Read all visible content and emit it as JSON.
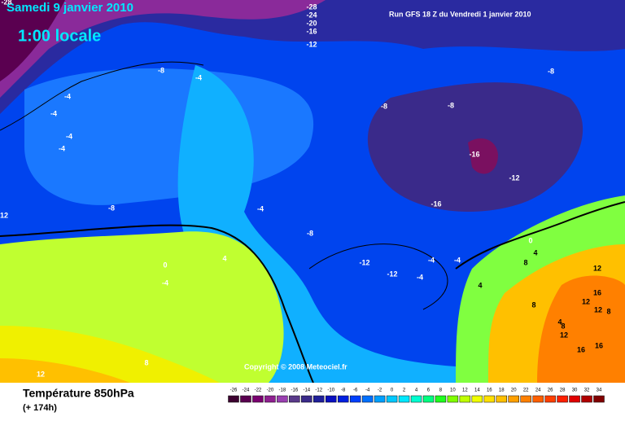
{
  "header": {
    "date": "Samedi 9 janvier 2010",
    "time": "1:00 locale",
    "run": "Run GFS 18 Z du Vendredi 1 janvier 2010"
  },
  "copyright": "Copyright © 2008 Meteociel.fr",
  "footer": {
    "title": "Température 850hPa",
    "subtitle": "(+ 174h)"
  },
  "scale": {
    "labels": [
      -26,
      -24,
      -22,
      -20,
      -18,
      -16,
      -14,
      -12,
      -10,
      -8,
      -6,
      -4,
      -2,
      0,
      2,
      4,
      6,
      8,
      10,
      12,
      14,
      16,
      18,
      20,
      22,
      24,
      26,
      28,
      30,
      32,
      34
    ],
    "colors": [
      "#3d0030",
      "#5a0050",
      "#7a0070",
      "#8f2090",
      "#9a40b0",
      "#5a3a8a",
      "#3a2a8a",
      "#20209a",
      "#0a10c0",
      "#0020e0",
      "#0040ff",
      "#0070ff",
      "#00a0ff",
      "#00c8ff",
      "#00e8ff",
      "#00ffd0",
      "#00ff80",
      "#20ff20",
      "#80ff00",
      "#c0ff00",
      "#f0ff00",
      "#ffe000",
      "#ffc000",
      "#ffa000",
      "#ff8000",
      "#ff6000",
      "#ff4000",
      "#ff2000",
      "#e00000",
      "#b00000",
      "#800000"
    ]
  },
  "contour_labels": [
    -28,
    -28,
    -24,
    -20,
    -16,
    -12,
    -8,
    -4,
    -4,
    -4,
    -4,
    -4,
    -8,
    -8,
    -8,
    -16,
    -12,
    -16,
    12,
    -8,
    -4,
    -8,
    0,
    -12,
    -12,
    -4,
    -4,
    -4,
    4,
    8,
    4,
    4,
    0,
    -4,
    12,
    16,
    12,
    12,
    8,
    8,
    4,
    8,
    12,
    16,
    16,
    8,
    12
  ]
}
